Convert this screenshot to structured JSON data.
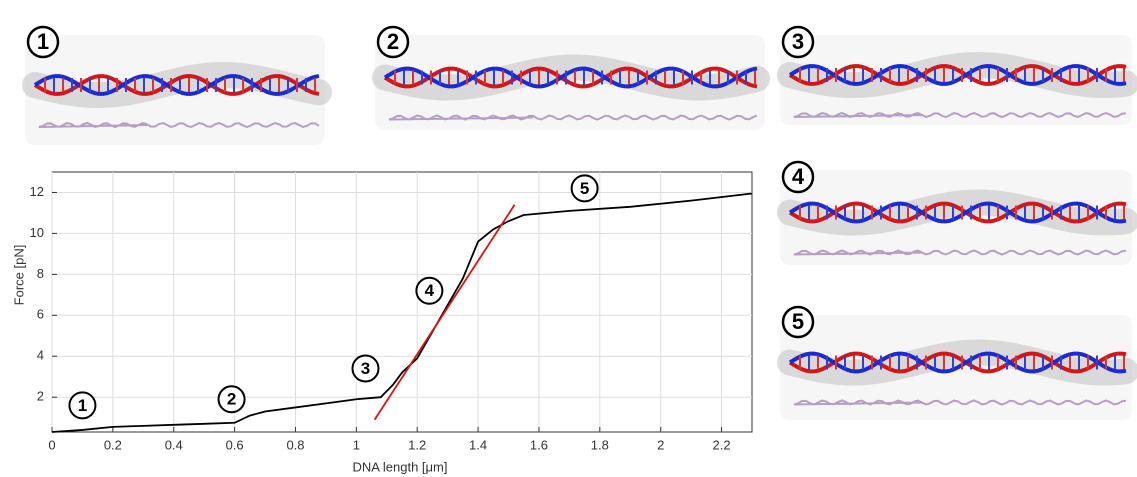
{
  "panels": [
    {
      "label": "1"
    },
    {
      "label": "2"
    },
    {
      "label": "3"
    },
    {
      "label": "4"
    },
    {
      "label": "5"
    }
  ],
  "chart_data": {
    "type": "line",
    "x_label": "DNA length [μm]",
    "y_label": "Force [pN]",
    "x": [
      0,
      0.1,
      0.2,
      0.3,
      0.4,
      0.5,
      0.6,
      0.65,
      0.7,
      0.8,
      0.9,
      1.0,
      1.08,
      1.12,
      1.15,
      1.2,
      1.25,
      1.3,
      1.35,
      1.4,
      1.45,
      1.5,
      1.55,
      1.7,
      1.9,
      2.1,
      2.3
    ],
    "values": [
      0.3,
      0.4,
      0.55,
      0.6,
      0.65,
      0.7,
      0.75,
      1.1,
      1.3,
      1.5,
      1.7,
      1.9,
      2.0,
      2.6,
      3.2,
      3.9,
      5.2,
      6.5,
      7.8,
      9.6,
      10.2,
      10.6,
      10.9,
      11.1,
      11.3,
      11.6,
      11.95
    ],
    "color": "#000000",
    "fit": {
      "x": [
        1.06,
        1.52
      ],
      "values": [
        0.9,
        11.4
      ],
      "color": "#e01010"
    },
    "annotations": [
      {
        "label": "1",
        "x": 0.1,
        "y": 1.6
      },
      {
        "label": "2",
        "x": 0.59,
        "y": 1.9
      },
      {
        "label": "3",
        "x": 1.03,
        "y": 3.4
      },
      {
        "label": "4",
        "x": 1.24,
        "y": 7.2
      },
      {
        "label": "5",
        "x": 1.75,
        "y": 12.2
      }
    ],
    "xlim": [
      0,
      2.3
    ],
    "ylim": [
      0.3,
      13
    ],
    "xticks": [
      0,
      0.2,
      0.4,
      0.6,
      0.8,
      1,
      1.2,
      1.4,
      1.6,
      1.8,
      2,
      2.2
    ],
    "yticks": [
      2,
      4,
      6,
      8,
      10,
      12
    ],
    "grid": true
  }
}
